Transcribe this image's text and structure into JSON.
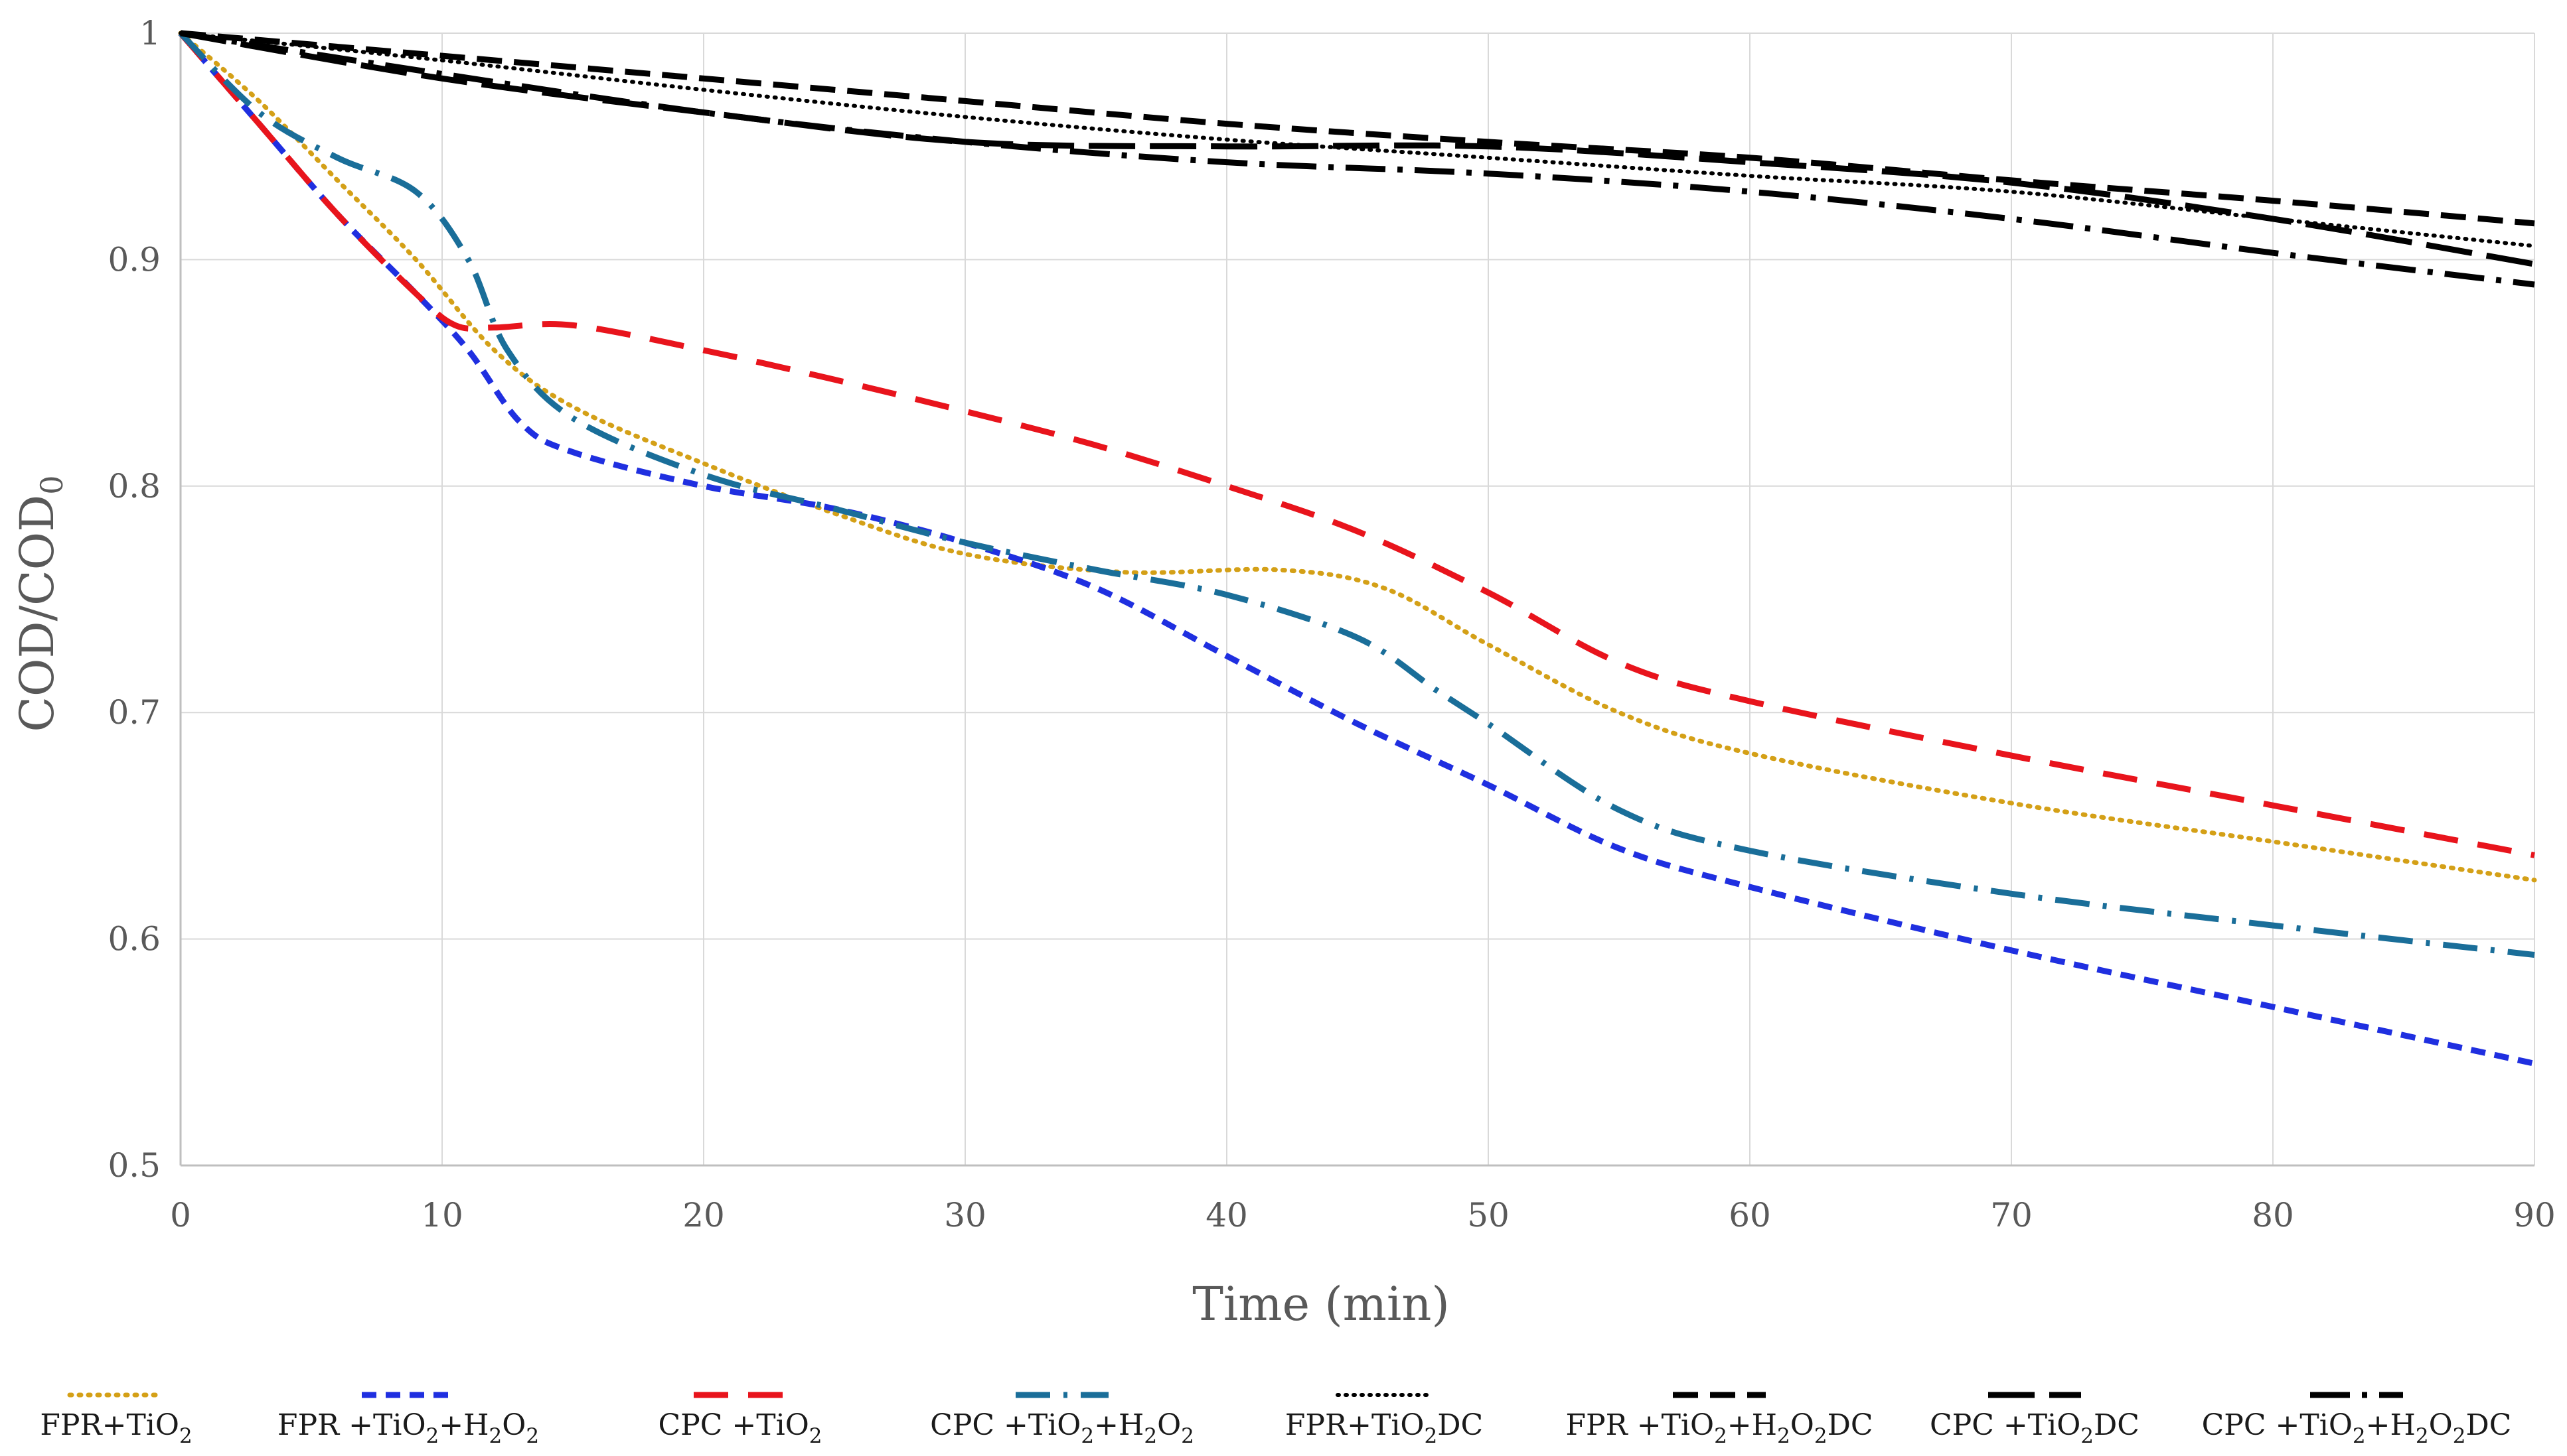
{
  "chart_data": {
    "type": "line",
    "title": "",
    "xlabel": "Time (min)",
    "ylabel": "COD/COD",
    "ylabel_sub": "0",
    "xlim": [
      0,
      90
    ],
    "ylim": [
      0.5,
      1
    ],
    "x_ticks": [
      0,
      10,
      20,
      30,
      40,
      50,
      60,
      70,
      80,
      90
    ],
    "y_ticks": [
      0.5,
      0.6,
      0.7,
      0.8,
      0.9,
      1
    ],
    "grid": true,
    "legend_position": "bottom",
    "series": [
      {
        "name": "FPR+TiO2",
        "label_parts": [
          [
            "FPR+TiO",
            ""
          ],
          [
            "2",
            "sub"
          ]
        ],
        "color": "#D4A017",
        "dash": "dot",
        "x": [
          0,
          3,
          6,
          9,
          12,
          15,
          20,
          25,
          30,
          36,
          42,
          46,
          50,
          55,
          60,
          70,
          80,
          90
        ],
        "y": [
          1,
          0.97,
          0.935,
          0.9,
          0.86,
          0.835,
          0.81,
          0.788,
          0.77,
          0.762,
          0.763,
          0.755,
          0.73,
          0.7,
          0.682,
          0.66,
          0.643,
          0.626
        ]
      },
      {
        "name": "FPR+TiO2+H2O2",
        "label_parts": [
          [
            "FPR +TiO",
            ""
          ],
          [
            "2",
            "sub"
          ],
          [
            "+H",
            ""
          ],
          [
            "2",
            "sub"
          ],
          [
            "O",
            ""
          ],
          [
            "2",
            "sub"
          ]
        ],
        "color": "#1F2FE0",
        "dash": "dash-short",
        "x": [
          0,
          3,
          6,
          9,
          11,
          13,
          15,
          20,
          25,
          30,
          35,
          40,
          45,
          50,
          55,
          60,
          70,
          80,
          90
        ],
        "y": [
          1,
          0.96,
          0.92,
          0.885,
          0.86,
          0.828,
          0.815,
          0.8,
          0.79,
          0.775,
          0.755,
          0.725,
          0.695,
          0.668,
          0.64,
          0.623,
          0.595,
          0.57,
          0.545
        ]
      },
      {
        "name": "CPC+TiO2",
        "label_parts": [
          [
            "CPC +TiO",
            ""
          ],
          [
            "2",
            "sub"
          ]
        ],
        "color": "#E8141C",
        "dash": "dash-long",
        "x": [
          0,
          3,
          6,
          9,
          10.5,
          12,
          15,
          20,
          25,
          30,
          35,
          40,
          45,
          50,
          55,
          60,
          70,
          80,
          90
        ],
        "y": [
          1,
          0.96,
          0.92,
          0.885,
          0.871,
          0.87,
          0.871,
          0.86,
          0.847,
          0.833,
          0.818,
          0.8,
          0.78,
          0.753,
          0.722,
          0.705,
          0.681,
          0.659,
          0.637
        ]
      },
      {
        "name": "CPC+TiO2+H2O2",
        "label_parts": [
          [
            "CPC +TiO",
            ""
          ],
          [
            "2",
            "sub"
          ],
          [
            "+H",
            ""
          ],
          [
            "2",
            "sub"
          ],
          [
            "O",
            ""
          ],
          [
            "2",
            "sub"
          ]
        ],
        "color": "#1A6E99",
        "dash": "dashdot",
        "x": [
          0,
          3,
          6,
          9,
          11,
          12.5,
          15,
          20,
          25,
          30,
          35,
          40,
          45,
          48,
          50,
          55,
          60,
          70,
          80,
          90
        ],
        "y": [
          1,
          0.965,
          0.945,
          0.93,
          0.9,
          0.86,
          0.83,
          0.805,
          0.79,
          0.775,
          0.763,
          0.752,
          0.733,
          0.71,
          0.695,
          0.657,
          0.639,
          0.62,
          0.606,
          0.593
        ]
      },
      {
        "name": "FPR+TiO2 DC",
        "label_parts": [
          [
            "FPR+TiO",
            ""
          ],
          [
            "2",
            "sub"
          ],
          [
            "DC",
            ""
          ]
        ],
        "color": "#000000",
        "dash": "dot-black",
        "x": [
          0,
          10,
          20,
          30,
          40,
          50,
          60,
          70,
          80,
          90
        ],
        "y": [
          1,
          0.988,
          0.975,
          0.963,
          0.953,
          0.945,
          0.937,
          0.93,
          0.918,
          0.906
        ]
      },
      {
        "name": "FPR+TiO2+H2O2 DC",
        "label_parts": [
          [
            "FPR +TiO",
            ""
          ],
          [
            "2",
            "sub"
          ],
          [
            "+H",
            ""
          ],
          [
            "2",
            "sub"
          ],
          [
            "O",
            ""
          ],
          [
            "2",
            "sub"
          ],
          [
            "DC",
            ""
          ]
        ],
        "color": "#000000",
        "dash": "dash-black",
        "x": [
          0,
          10,
          20,
          30,
          40,
          50,
          60,
          70,
          80,
          90
        ],
        "y": [
          1,
          0.99,
          0.98,
          0.97,
          0.96,
          0.952,
          0.945,
          0.935,
          0.926,
          0.916
        ]
      },
      {
        "name": "CPC+TiO2 DC",
        "label_parts": [
          [
            "CPC +TiO",
            ""
          ],
          [
            "2",
            "sub"
          ],
          [
            "DC",
            ""
          ]
        ],
        "color": "#000000",
        "dash": "longdash-black",
        "x": [
          0,
          10,
          20,
          30,
          40,
          50,
          60,
          70,
          80,
          90
        ],
        "y": [
          1,
          0.98,
          0.965,
          0.952,
          0.95,
          0.95,
          0.943,
          0.934,
          0.918,
          0.898
        ]
      },
      {
        "name": "CPC+TiO2+H2O2 DC",
        "label_parts": [
          [
            "CPC +TiO",
            ""
          ],
          [
            "2",
            "sub"
          ],
          [
            "+H",
            ""
          ],
          [
            "2",
            "sub"
          ],
          [
            "O",
            ""
          ],
          [
            "2",
            "sub"
          ],
          [
            "DC",
            ""
          ]
        ],
        "color": "#000000",
        "dash": "dashdot-black",
        "x": [
          0,
          10,
          20,
          30,
          40,
          50,
          60,
          70,
          80,
          90
        ],
        "y": [
          1,
          0.982,
          0.965,
          0.952,
          0.943,
          0.938,
          0.93,
          0.918,
          0.903,
          0.889
        ]
      }
    ]
  }
}
